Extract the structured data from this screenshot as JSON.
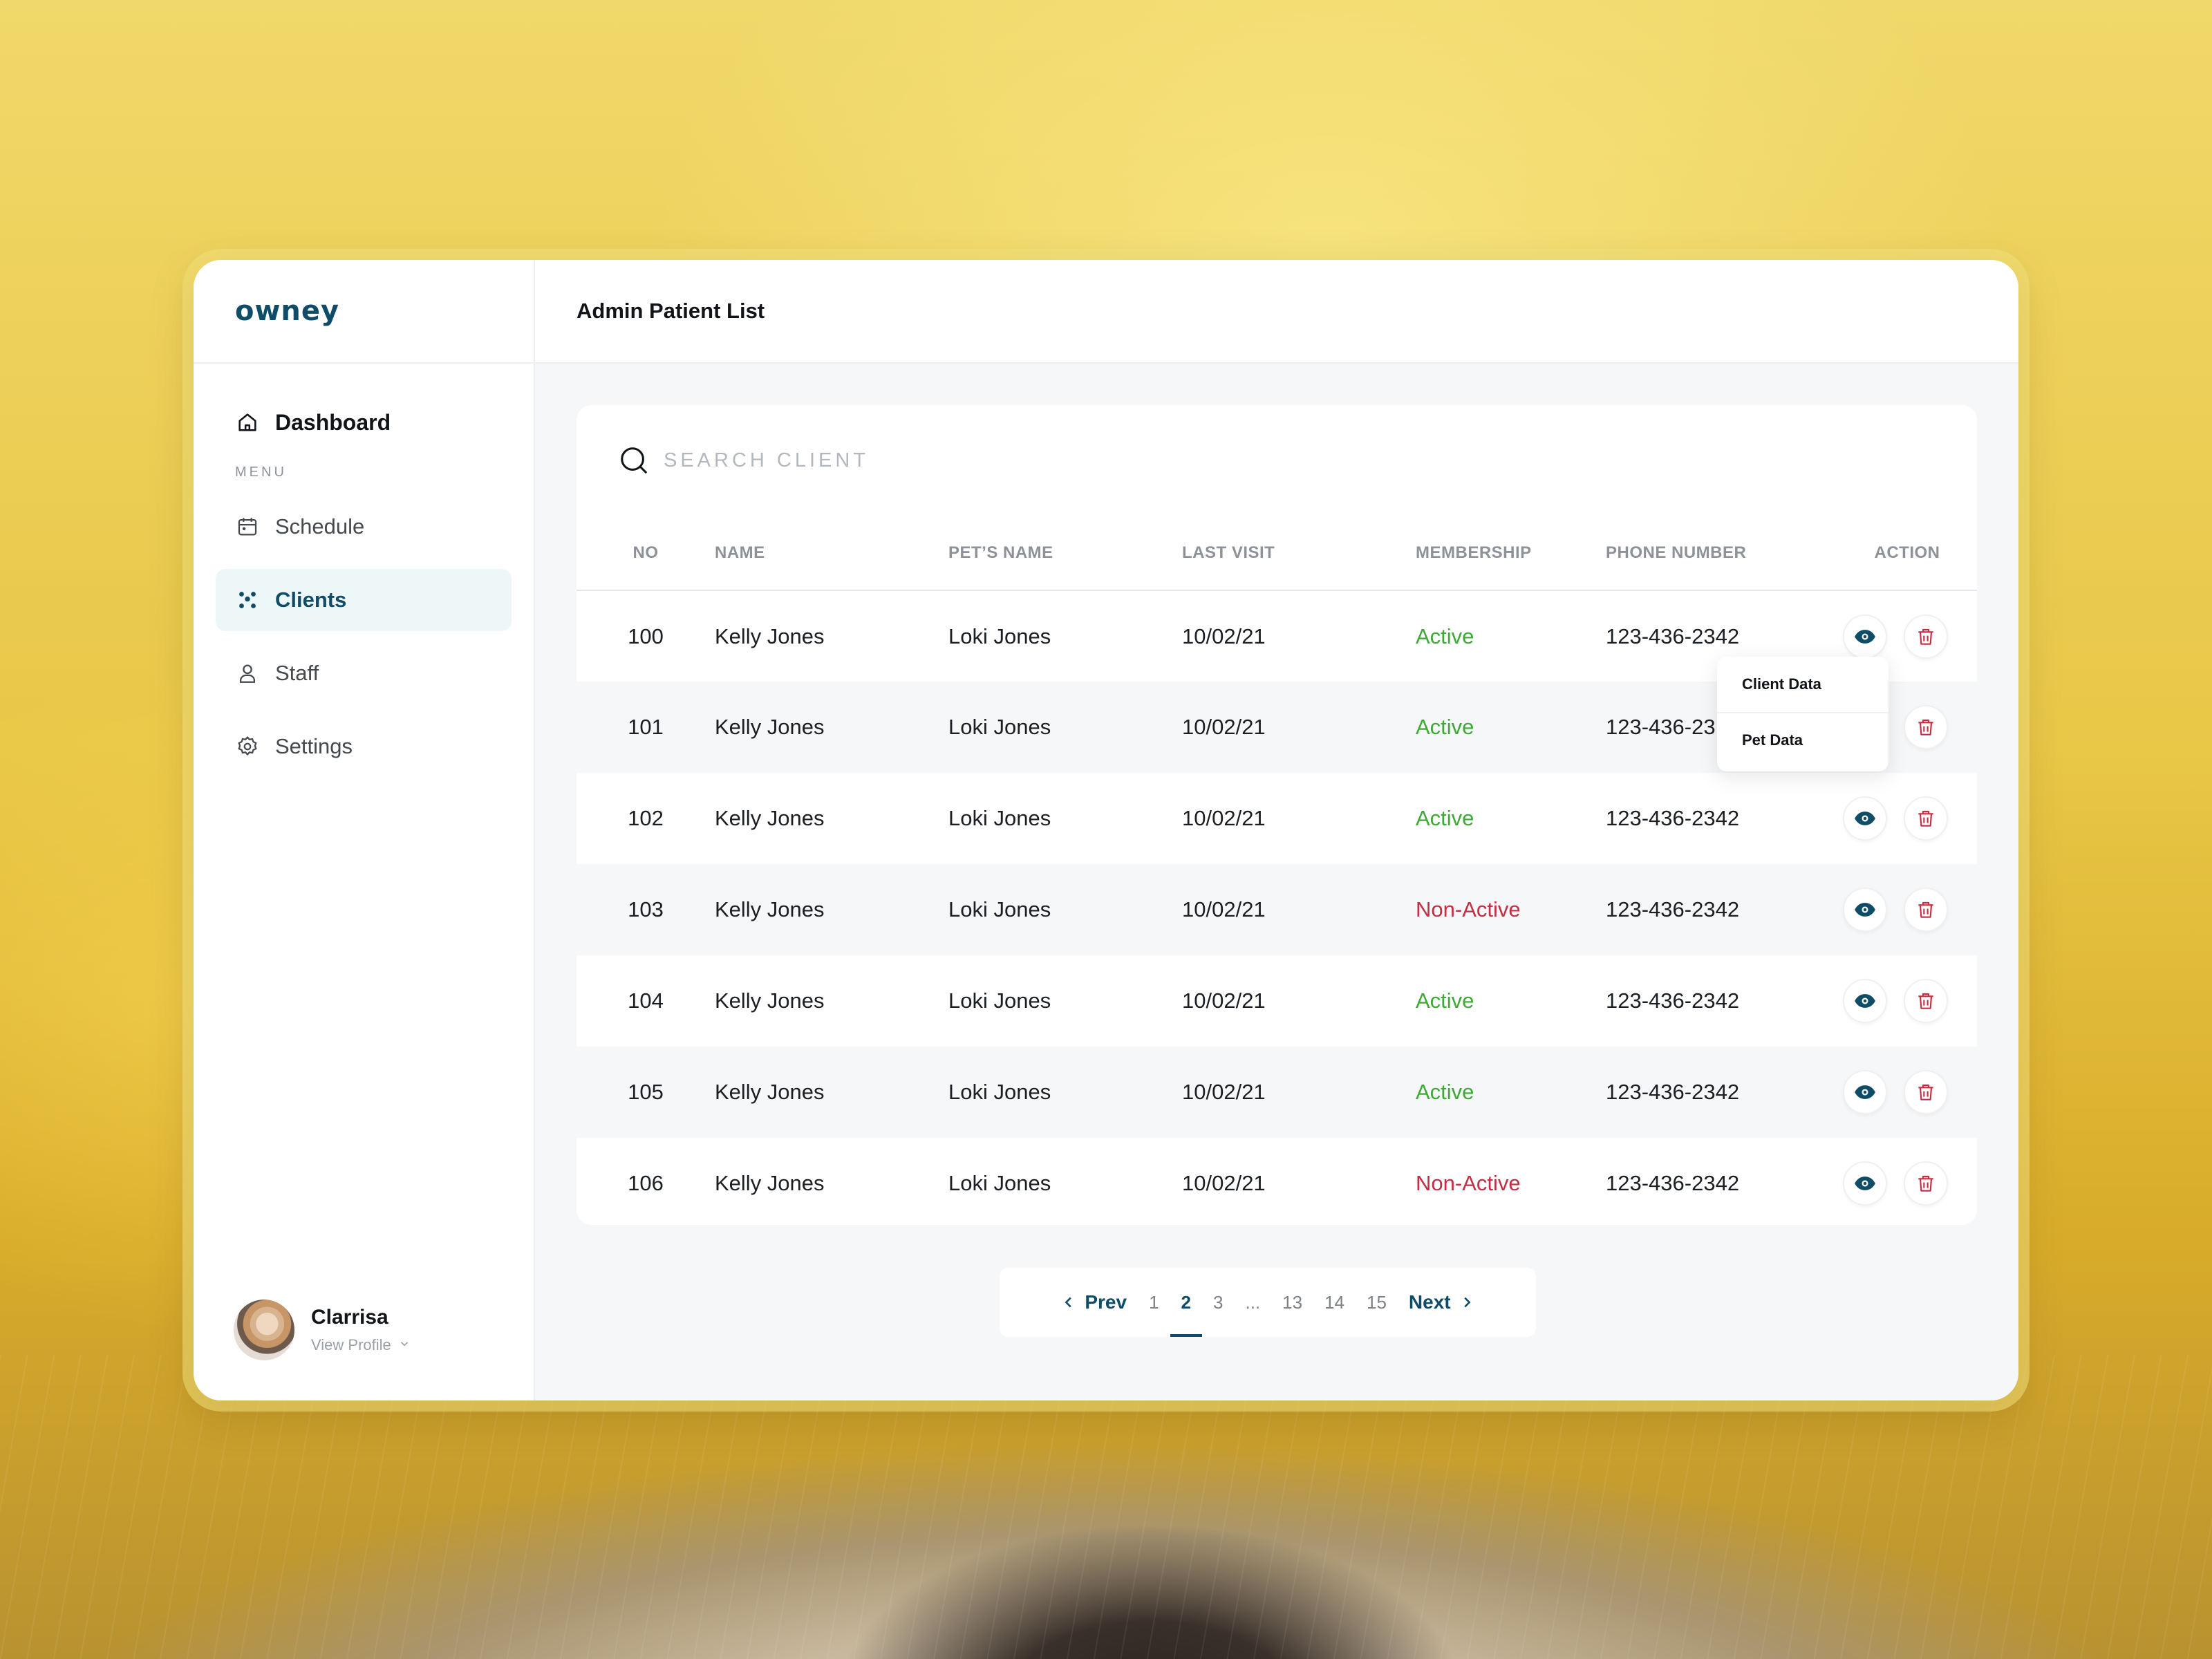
{
  "brand": {
    "logo": "owney"
  },
  "sidebar": {
    "dashboard_label": "Dashboard",
    "menu_label": "MENU",
    "items": [
      {
        "label": "Schedule",
        "icon": "calendar-icon"
      },
      {
        "label": "Clients",
        "icon": "users-icon",
        "active": true
      },
      {
        "label": "Staff",
        "icon": "user-icon"
      },
      {
        "label": "Settings",
        "icon": "gear-icon"
      }
    ],
    "profile": {
      "name": "Clarrisa",
      "link": "View Profile"
    }
  },
  "header": {
    "title": "Admin Patient List"
  },
  "search": {
    "placeholder": "SEARCH CLIENT"
  },
  "table": {
    "columns": [
      "NO",
      "NAME",
      "PET’S NAME",
      "LAST VISIT",
      "MEMBERSHIP",
      "PHONE NUMBER",
      "ACTION"
    ],
    "rows": [
      {
        "no": "100",
        "name": "Kelly Jones",
        "pet": "Loki Jones",
        "visit": "10/02/21",
        "membership": "Active",
        "phone": "123-436-2342"
      },
      {
        "no": "101",
        "name": "Kelly Jones",
        "pet": "Loki Jones",
        "visit": "10/02/21",
        "membership": "Active",
        "phone": "123-436-23"
      },
      {
        "no": "102",
        "name": "Kelly Jones",
        "pet": "Loki Jones",
        "visit": "10/02/21",
        "membership": "Active",
        "phone": "123-436-2342"
      },
      {
        "no": "103",
        "name": "Kelly Jones",
        "pet": "Loki Jones",
        "visit": "10/02/21",
        "membership": "Non-Active",
        "phone": "123-436-2342"
      },
      {
        "no": "104",
        "name": "Kelly Jones",
        "pet": "Loki Jones",
        "visit": "10/02/21",
        "membership": "Active",
        "phone": "123-436-2342"
      },
      {
        "no": "105",
        "name": "Kelly Jones",
        "pet": "Loki Jones",
        "visit": "10/02/21",
        "membership": "Active",
        "phone": "123-436-2342"
      },
      {
        "no": "106",
        "name": "Kelly Jones",
        "pet": "Loki Jones",
        "visit": "10/02/21",
        "membership": "Non-Active",
        "phone": "123-436-2342"
      }
    ]
  },
  "dropdown": {
    "items": [
      "Client Data",
      "Pet Data"
    ]
  },
  "pagination": {
    "prev": "Prev",
    "next": "Next",
    "pages": [
      "1",
      "2",
      "3",
      "...",
      "13",
      "14",
      "15"
    ],
    "current": "2"
  },
  "colors": {
    "brand": "#0f4c68",
    "active": "#3daa35",
    "inactive": "#c42d42",
    "delete": "#c42d42"
  }
}
